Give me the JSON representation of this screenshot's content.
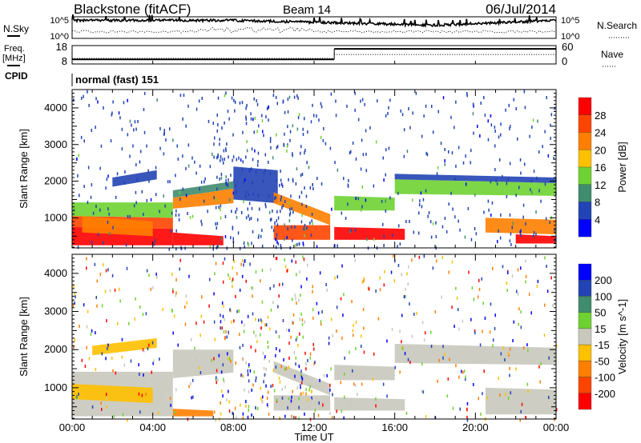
{
  "header": {
    "title": "Blackstone (fitACF)",
    "beam": "Beam 14",
    "date": "06/Jul/2014"
  },
  "noise_panel": {
    "left_label": "N.Sky",
    "right_label": "N.Search",
    "left_ticks": [
      "10^5",
      "10^0"
    ],
    "right_ticks": [
      "10^5",
      "10^0"
    ]
  },
  "freq_panel": {
    "left_label_1": "Freq.",
    "left_label_2": "[MHz]",
    "right_label": "Nave",
    "left_ticks": [
      "18",
      "8"
    ],
    "right_ticks": [
      "60",
      "0"
    ],
    "freq_series": [
      {
        "t0": 0,
        "t1": 13,
        "mhz": 10.5
      },
      {
        "t0": 13,
        "t1": 24,
        "mhz": 16.2
      }
    ],
    "nave_series": [
      {
        "t0": 0,
        "t1": 13,
        "nave": 18
      },
      {
        "t0": 13,
        "t1": 24,
        "nave": 31
      }
    ]
  },
  "cpid": {
    "label": "CPID",
    "value": "normal (fast) 151"
  },
  "chart_data": [
    {
      "type": "heatmap",
      "title": "Power",
      "xlabel": "Time UT",
      "ylabel": "Slant Range [km]",
      "xlim": [
        0,
        24
      ],
      "ylim": [
        180,
        4500
      ],
      "x_ticks": [
        "00:00",
        "04:00",
        "08:00",
        "12:00",
        "16:00",
        "20:00",
        "00:00"
      ],
      "y_ticks": [
        "1000",
        "2000",
        "3000",
        "4000"
      ],
      "colorbar": {
        "label": "Power [dB]",
        "ticks": [
          "4",
          "8",
          "12",
          "16",
          "20",
          "24",
          "28"
        ],
        "colors": [
          "#0000ff",
          "#2244b4",
          "#3f8c6e",
          "#6ed232",
          "#ffc000",
          "#ff7f00",
          "#ff4400",
          "#ff0000"
        ]
      },
      "bands": [
        {
          "t": [
            0,
            5
          ],
          "r0": [
            250,
            250
          ],
          "r1": [
            750,
            700
          ],
          "bin": 7
        },
        {
          "t": [
            0,
            5
          ],
          "r0": [
            750,
            700
          ],
          "r1": [
            1050,
            1000
          ],
          "bin": 6
        },
        {
          "t": [
            0,
            5
          ],
          "r0": [
            1050,
            1000
          ],
          "r1": [
            1420,
            1420
          ],
          "bin": 3
        },
        {
          "t": [
            0.5,
            4
          ],
          "r0": [
            600,
            500
          ],
          "r1": [
            1050,
            900
          ],
          "bin": 5
        },
        {
          "t": [
            2,
            4.2
          ],
          "r0": [
            1850,
            2050
          ],
          "r1": [
            2100,
            2300
          ],
          "bin": 1
        },
        {
          "t": [
            5,
            8
          ],
          "r0": [
            1250,
            1400
          ],
          "r1": [
            1550,
            1800
          ],
          "bin": 5
        },
        {
          "t": [
            5,
            8
          ],
          "r0": [
            1550,
            1800
          ],
          "r1": [
            1750,
            2000
          ],
          "bin": 2
        },
        {
          "t": [
            5,
            7.5
          ],
          "r0": [
            250,
            250
          ],
          "r1": [
            600,
            500
          ],
          "bin": 7
        },
        {
          "t": [
            8,
            10.2
          ],
          "r0": [
            1500,
            1400
          ],
          "r1": [
            2400,
            2300
          ],
          "bin": 1
        },
        {
          "t": [
            10,
            12.8
          ],
          "r0": [
            1400,
            800
          ],
          "r1": [
            1700,
            1100
          ],
          "bin": 5
        },
        {
          "t": [
            10,
            12.8
          ],
          "r0": [
            400,
            400
          ],
          "r1": [
            800,
            800
          ],
          "bin": 6
        },
        {
          "t": [
            13,
            16
          ],
          "r0": [
            1200,
            1200
          ],
          "r1": [
            1600,
            1550
          ],
          "bin": 3
        },
        {
          "t": [
            13,
            16.5
          ],
          "r0": [
            400,
            400
          ],
          "r1": [
            750,
            700
          ],
          "bin": 7
        },
        {
          "t": [
            16,
            24
          ],
          "r0": [
            1650,
            1600
          ],
          "r1": [
            2050,
            1950
          ],
          "bin": 3
        },
        {
          "t": [
            16,
            24
          ],
          "r0": [
            2050,
            1950
          ],
          "r1": [
            2200,
            2100
          ],
          "bin": 1
        },
        {
          "t": [
            20.5,
            24
          ],
          "r0": [
            600,
            550
          ],
          "r1": [
            1000,
            950
          ],
          "bin": 5
        },
        {
          "t": [
            22,
            24
          ],
          "r0": [
            300,
            300
          ],
          "r1": [
            550,
            500
          ],
          "bin": 7
        }
      ]
    },
    {
      "type": "heatmap",
      "title": "Velocity",
      "xlabel": "Time UT",
      "ylabel": "Slant Range [km]",
      "xlim": [
        0,
        24
      ],
      "ylim": [
        180,
        4500
      ],
      "x_ticks": [
        "00:00",
        "04:00",
        "08:00",
        "12:00",
        "16:00",
        "20:00",
        "00:00"
      ],
      "y_ticks": [
        "1000",
        "2000",
        "3000",
        "4000"
      ],
      "colorbar": {
        "label": "Velocity [m s^-1]",
        "label_main": "Velocity",
        "label_unit": "[m s",
        "label_exp": "-1",
        "label_close": "]",
        "ticks": [
          "200",
          "100",
          "50",
          "15",
          "-15",
          "-50",
          "-100",
          "-200"
        ],
        "colors": [
          "#0000ff",
          "#2244b4",
          "#3f8c6e",
          "#6ed232",
          "#c8c8bc",
          "#ffc000",
          "#ff7f00",
          "#ff4400",
          "#ff0000"
        ]
      },
      "bands": [
        {
          "t": [
            0,
            5
          ],
          "r0": [
            250,
            250
          ],
          "r1": [
            1420,
            1420
          ],
          "bin": 4
        },
        {
          "t": [
            0,
            4
          ],
          "r0": [
            700,
            600
          ],
          "r1": [
            1100,
            1000
          ],
          "bin": 5
        },
        {
          "t": [
            1,
            4.2
          ],
          "r0": [
            1850,
            2050
          ],
          "r1": [
            2100,
            2300
          ],
          "bin": 5
        },
        {
          "t": [
            5,
            8
          ],
          "r0": [
            1250,
            1400
          ],
          "r1": [
            2000,
            2000
          ],
          "bin": 4
        },
        {
          "t": [
            5,
            7
          ],
          "r0": [
            250,
            250
          ],
          "r1": [
            450,
            400
          ],
          "bin": 6
        },
        {
          "t": [
            10,
            12.8
          ],
          "r0": [
            1400,
            800
          ],
          "r1": [
            1700,
            1100
          ],
          "bin": 4
        },
        {
          "t": [
            10,
            12.8
          ],
          "r0": [
            400,
            400
          ],
          "r1": [
            800,
            800
          ],
          "bin": 4
        },
        {
          "t": [
            13,
            16
          ],
          "r0": [
            1200,
            1200
          ],
          "r1": [
            1600,
            1550
          ],
          "bin": 4
        },
        {
          "t": [
            13,
            16.5
          ],
          "r0": [
            400,
            400
          ],
          "r1": [
            750,
            700
          ],
          "bin": 4
        },
        {
          "t": [
            16,
            24
          ],
          "r0": [
            1650,
            1600
          ],
          "r1": [
            2150,
            2050
          ],
          "bin": 4
        },
        {
          "t": [
            20.5,
            24
          ],
          "r0": [
            300,
            300
          ],
          "r1": [
            1000,
            950
          ],
          "bin": 4
        }
      ]
    }
  ]
}
